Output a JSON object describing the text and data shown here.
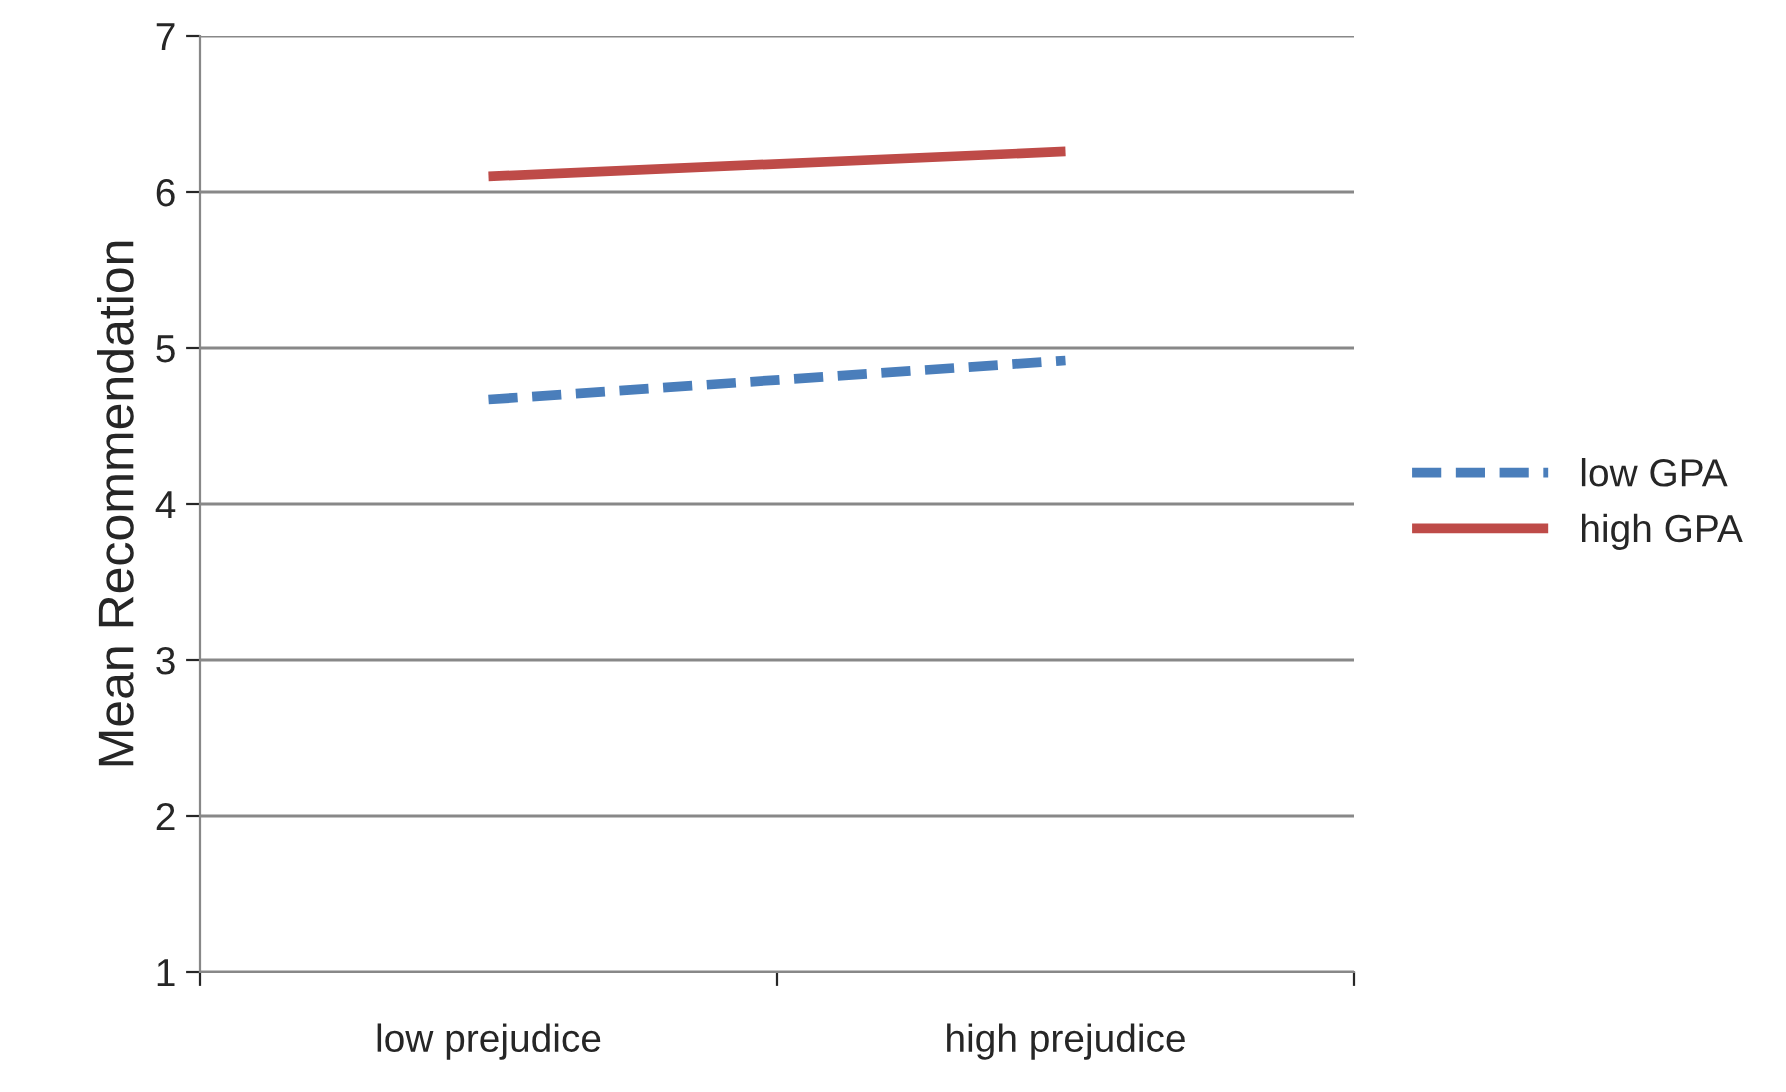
{
  "chart_data": {
    "type": "line",
    "ylabel": "Mean Recommendation",
    "categories": [
      "low prejudice",
      "high prejudice"
    ],
    "series": [
      {
        "name": "low GPA",
        "color": "#4a7ebb",
        "values": [
          4.67,
          4.92
        ],
        "line_style": "dashed"
      },
      {
        "name": "high GPA",
        "color": "#be4b48",
        "values": [
          6.1,
          6.26
        ],
        "line_style": "solid"
      }
    ],
    "ylim": [
      1,
      7
    ],
    "yticks": [
      1,
      2,
      3,
      4,
      5,
      6,
      7
    ],
    "grid": "y",
    "legend": "right",
    "marker": "none"
  }
}
